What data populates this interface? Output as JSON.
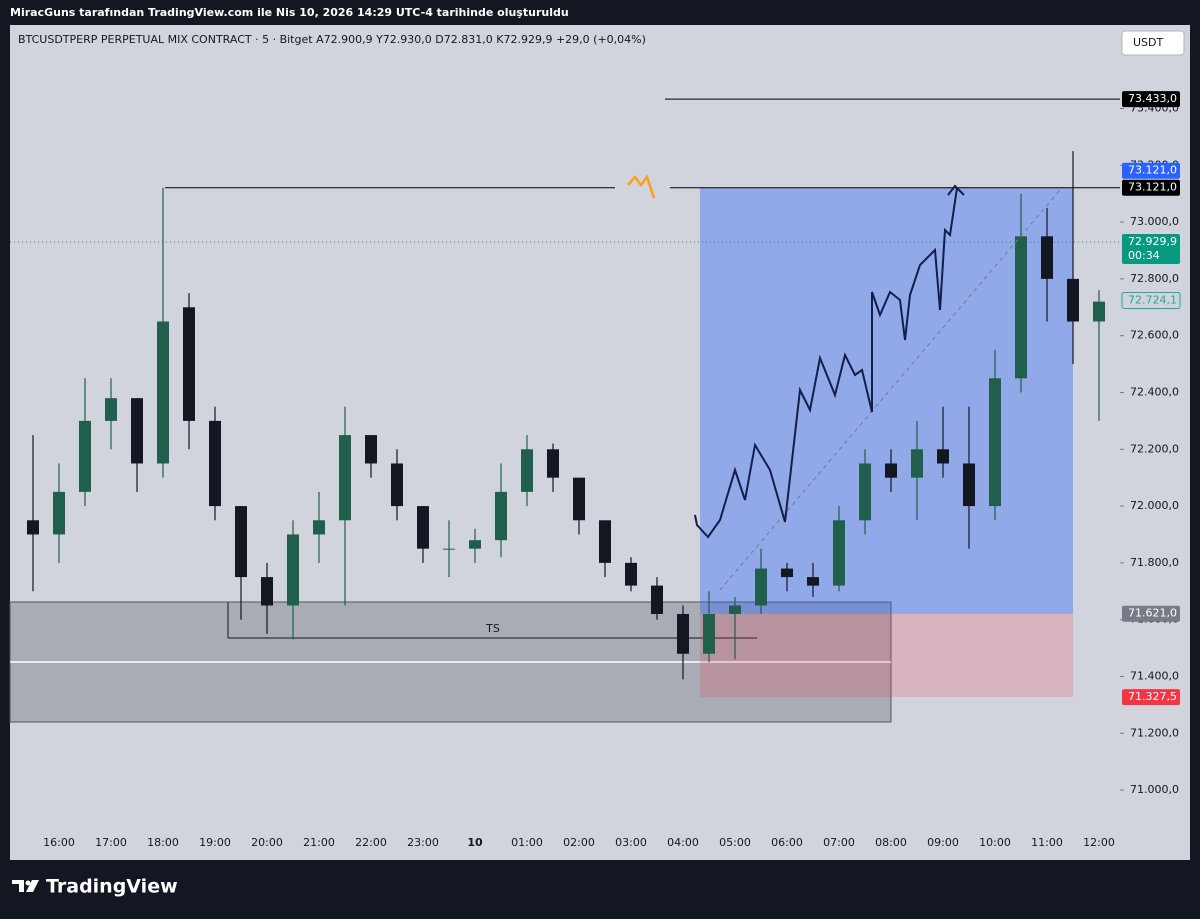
{
  "header": {
    "title": "MiracGuns tarafından TradingView.com ile Nis 10, 2026 14:29 UTC-4 tarihinde oluşturuldu"
  },
  "chart_data": {
    "type": "candlestick",
    "symbol": "BTCUSDTPERP PERPETUAL MIX CONTRACT · 5 · Bitget",
    "ohlc": [
      "A72.900,9",
      "Y72.930,0",
      "D72.831,0",
      "K72.929,9"
    ],
    "change": "+29,0 (+0,04%)",
    "currency": "USDT",
    "annotation": "TS",
    "countdown": "00:34",
    "categories": [
      null,
      "16:00",
      null,
      "17:00",
      null,
      "18:00",
      null,
      "19:00",
      null,
      "20:00",
      null,
      "21:00",
      null,
      "22:00",
      null,
      "23:00",
      null,
      "10",
      null,
      "01:00",
      null,
      "02:00",
      null,
      "03:00",
      null,
      "04:00",
      null,
      "05:00",
      null,
      "06:00",
      null,
      "07:00",
      null,
      "08:00",
      null,
      "09:00",
      null,
      "10:00",
      null,
      "11:00",
      null,
      "12:00"
    ],
    "open": [
      71950,
      71900,
      72050,
      72300,
      72380,
      72150,
      72700,
      72300,
      72000,
      71750,
      71650,
      71900,
      71950,
      72250,
      72150,
      72000,
      71850,
      71850,
      71880,
      72050,
      72200,
      72100,
      71950,
      71800,
      71720,
      71620,
      71480,
      71620,
      71650,
      71780,
      71750,
      71720,
      71950,
      72150,
      72100,
      72200,
      72150,
      72000,
      72450,
      72950,
      72800,
      72650
    ],
    "high": [
      72250,
      72150,
      72450,
      72450,
      72380,
      73121,
      72750,
      72350,
      72000,
      71800,
      71950,
      72050,
      72350,
      72250,
      72200,
      72000,
      71950,
      71920,
      72150,
      72250,
      72220,
      72100,
      71950,
      71820,
      71750,
      71650,
      71700,
      71680,
      71850,
      71800,
      71800,
      72000,
      72200,
      72200,
      72300,
      72350,
      72350,
      72550,
      73100,
      73050,
      73250,
      72760
    ],
    "low": [
      71700,
      71800,
      72000,
      72200,
      72050,
      72100,
      72200,
      71950,
      71600,
      71550,
      71530,
      71800,
      71650,
      72100,
      71950,
      71800,
      71750,
      71800,
      71820,
      72000,
      72050,
      71900,
      71750,
      71700,
      71600,
      71390,
      71450,
      71460,
      71620,
      71700,
      71680,
      71700,
      71900,
      72050,
      71950,
      72100,
      71850,
      71950,
      72400,
      72650,
      72500,
      72300
    ],
    "close": [
      71900,
      72050,
      72300,
      72380,
      72150,
      72650,
      72300,
      72000,
      71750,
      71650,
      71900,
      71950,
      72250,
      72150,
      72000,
      71850,
      71850,
      71880,
      72050,
      72200,
      72100,
      71950,
      71800,
      71720,
      71620,
      71480,
      71620,
      71650,
      71780,
      71750,
      71720,
      71950,
      72150,
      72100,
      72200,
      72150,
      72000,
      72450,
      72950,
      72800,
      72650,
      72720
    ],
    "up_color": "#1f5f4c",
    "down_color": "#131722",
    "ylim": [
      70877,
      73694
    ],
    "yticks": [
      {
        "value": 71000,
        "label": "71.000,0"
      },
      {
        "value": 71200,
        "label": "71.200,0"
      },
      {
        "value": 71400,
        "label": "71.400,0"
      },
      {
        "value": 71600,
        "label": "71.600,0"
      },
      {
        "value": 71800,
        "label": "71.800,0"
      },
      {
        "value": 72000,
        "label": "72.000,0"
      },
      {
        "value": 72200,
        "label": "72.200,0"
      },
      {
        "value": 72400,
        "label": "72.400,0"
      },
      {
        "value": 72600,
        "label": "72.600,0"
      },
      {
        "value": 72800,
        "label": "72.800,0"
      },
      {
        "value": 73000,
        "label": "73.000,0"
      },
      {
        "value": 73200,
        "label": "73.200,0"
      },
      {
        "value": 73400,
        "label": "73.400,0"
      }
    ],
    "price_labels": [
      {
        "value": 73433,
        "label": "73.433,0",
        "color": "#000000"
      },
      {
        "value": 73121,
        "label": "73.121,0",
        "color": "#2962ff"
      },
      {
        "value": 73121,
        "label": "73.121,0",
        "color": "#000000"
      },
      {
        "value": 72929.9,
        "label": "72.929,9",
        "color": "#089981"
      },
      {
        "value": 72724.1,
        "label": "72.724,1",
        "color": "#26a69a"
      },
      {
        "value": 71621,
        "label": "71.621,0",
        "color": "#787b86"
      },
      {
        "value": 71327.5,
        "label": "71.327,5",
        "color": "#f23645"
      }
    ]
  },
  "footer": {
    "brand": "TradingView"
  }
}
